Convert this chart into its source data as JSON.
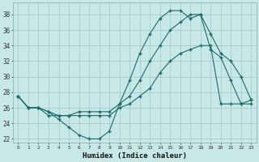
{
  "xlabel": "Humidex (Indice chaleur)",
  "background_color": "#c8e8e8",
  "grid_color": "#a0c8c8",
  "line_color": "#1a6b6b",
  "x_ticks": [
    0,
    1,
    2,
    3,
    4,
    5,
    6,
    7,
    8,
    9,
    10,
    11,
    12,
    13,
    14,
    15,
    16,
    17,
    18,
    19,
    20,
    21,
    22,
    23
  ],
  "y_ticks": [
    22,
    24,
    26,
    28,
    30,
    32,
    34,
    36,
    38
  ],
  "ylim": [
    21.5,
    39.5
  ],
  "xlim": [
    -0.5,
    23.5
  ],
  "series1_x": [
    0,
    1,
    2,
    3,
    4,
    5,
    6,
    7,
    8,
    9,
    10,
    11,
    12,
    13,
    14,
    15,
    16,
    17,
    18,
    19,
    20,
    21,
    22,
    23
  ],
  "series1_y": [
    27.5,
    26.0,
    26.0,
    25.5,
    24.5,
    23.5,
    22.5,
    22.0,
    22.0,
    23.0,
    26.5,
    29.5,
    33.0,
    35.5,
    37.5,
    38.5,
    38.5,
    37.5,
    38.0,
    35.5,
    33.0,
    32.0,
    30.0,
    27.0
  ],
  "series2_x": [
    0,
    1,
    2,
    3,
    4,
    5,
    6,
    7,
    8,
    9,
    10,
    11,
    12,
    13,
    14,
    15,
    16,
    17,
    18,
    19,
    20,
    21,
    22,
    23
  ],
  "series2_y": [
    27.5,
    26.0,
    26.0,
    25.0,
    25.0,
    25.0,
    25.0,
    25.0,
    25.0,
    25.0,
    26.0,
    26.5,
    27.5,
    28.5,
    30.5,
    32.0,
    33.0,
    33.5,
    34.0,
    34.0,
    26.5,
    26.5,
    26.5,
    26.5
  ],
  "series3_x": [
    0,
    1,
    2,
    3,
    4,
    5,
    6,
    7,
    8,
    9,
    10,
    11,
    12,
    13,
    14,
    15,
    16,
    17,
    18,
    19,
    20,
    21,
    22,
    23
  ],
  "series3_y": [
    27.5,
    26.0,
    26.0,
    25.5,
    25.0,
    25.0,
    25.5,
    25.5,
    25.5,
    25.5,
    26.5,
    27.5,
    29.5,
    32.0,
    34.0,
    36.0,
    37.0,
    38.0,
    38.0,
    33.5,
    32.5,
    29.5,
    26.5,
    27.0
  ]
}
